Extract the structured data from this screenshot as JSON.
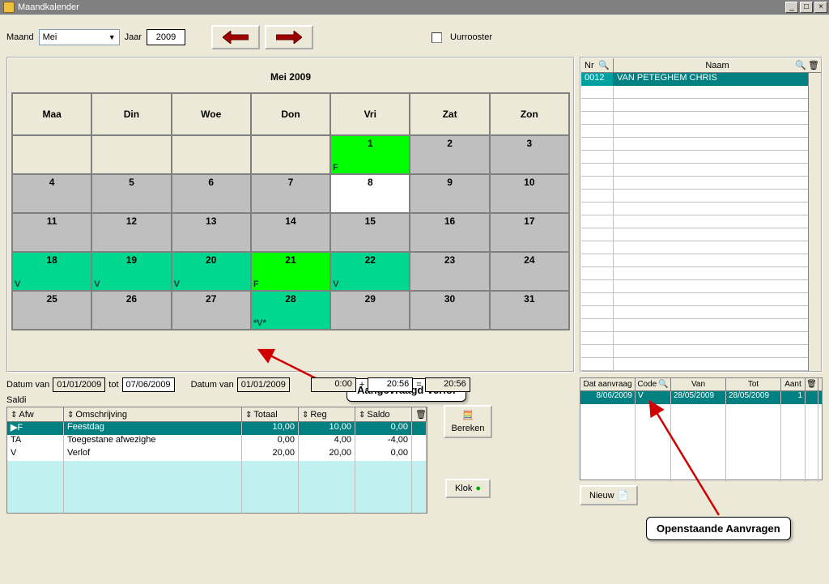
{
  "window": {
    "title": "Maandkalender"
  },
  "controls": {
    "month_label": "Maand",
    "month_value": "Mei",
    "year_label": "Jaar",
    "year_value": "2009",
    "uurrooster_label": "Uurrooster"
  },
  "calendar": {
    "title": "Mei 2009",
    "day_headers": [
      "Maa",
      "Din",
      "Woe",
      "Don",
      "Vri",
      "Zat",
      "Zon"
    ],
    "cells": [
      {
        "n": "",
        "bg": "empty"
      },
      {
        "n": "",
        "bg": "empty"
      },
      {
        "n": "",
        "bg": "empty"
      },
      {
        "n": "",
        "bg": "empty"
      },
      {
        "n": "1",
        "bg": "green",
        "code": "F"
      },
      {
        "n": "2",
        "bg": "gray"
      },
      {
        "n": "3",
        "bg": "gray"
      },
      {
        "n": "4",
        "bg": "gray"
      },
      {
        "n": "5",
        "bg": "gray"
      },
      {
        "n": "6",
        "bg": "gray"
      },
      {
        "n": "7",
        "bg": "gray"
      },
      {
        "n": "8",
        "bg": "white"
      },
      {
        "n": "9",
        "bg": "gray"
      },
      {
        "n": "10",
        "bg": "gray"
      },
      {
        "n": "11",
        "bg": "gray"
      },
      {
        "n": "12",
        "bg": "gray"
      },
      {
        "n": "13",
        "bg": "gray"
      },
      {
        "n": "14",
        "bg": "gray"
      },
      {
        "n": "15",
        "bg": "gray"
      },
      {
        "n": "16",
        "bg": "gray"
      },
      {
        "n": "17",
        "bg": "gray"
      },
      {
        "n": "18",
        "bg": "teal",
        "code": "V"
      },
      {
        "n": "19",
        "bg": "teal",
        "code": "V"
      },
      {
        "n": "20",
        "bg": "teal",
        "code": "V"
      },
      {
        "n": "21",
        "bg": "green",
        "code": "F"
      },
      {
        "n": "22",
        "bg": "teal",
        "code": "V"
      },
      {
        "n": "23",
        "bg": "gray"
      },
      {
        "n": "24",
        "bg": "gray"
      },
      {
        "n": "25",
        "bg": "gray"
      },
      {
        "n": "26",
        "bg": "gray"
      },
      {
        "n": "27",
        "bg": "gray"
      },
      {
        "n": "28",
        "bg": "teal",
        "code": "*V*"
      },
      {
        "n": "29",
        "bg": "gray"
      },
      {
        "n": "30",
        "bg": "gray"
      },
      {
        "n": "31",
        "bg": "gray"
      }
    ]
  },
  "callouts": {
    "aangevraagd": "Aangevraagd Verlof",
    "openstaande": "Openstaande Aanvragen"
  },
  "names": {
    "hdr_nr": "Nr",
    "hdr_naam": "Naam",
    "rows": [
      {
        "nr": "0012",
        "naam": "VAN PETEGHEM CHRIS"
      }
    ]
  },
  "dateline": {
    "datum_van_label": "Datum van",
    "van1": "01/01/2009",
    "tot_label": "tot",
    "tot1": "07/06/2009",
    "van2": "01/01/2009",
    "t1": "0:00",
    "plus": "+",
    "t2": "20:56",
    "eq": "=",
    "t3": "20:56"
  },
  "saldi": {
    "title": "Saldi",
    "hdr_afw": "Afw",
    "hdr_oms": "Omschrijving",
    "hdr_tot": "Totaal",
    "hdr_reg": "Reg",
    "hdr_sal": "Saldo",
    "rows": [
      {
        "afw": "F",
        "oms": "Feestdag",
        "tot": "10,00",
        "reg": "10,00",
        "sal": "0,00",
        "sel": true
      },
      {
        "afw": "TA",
        "oms": "Toegestane afwezighe",
        "tot": "0,00",
        "reg": "4,00",
        "sal": "-4,00",
        "sel": false
      },
      {
        "afw": "V",
        "oms": "Verlof",
        "tot": "20,00",
        "reg": "20,00",
        "sal": "0,00",
        "sel": false
      }
    ]
  },
  "buttons": {
    "bereken": "Bereken",
    "klok": "Klok",
    "nieuw": "Nieuw"
  },
  "requests": {
    "hdr_dat": "Dat aanvraag",
    "hdr_code": "Code",
    "hdr_van": "Van",
    "hdr_tot": "Tot",
    "hdr_aant": "Aant",
    "rows": [
      {
        "dat": "8/06/2009",
        "code": "V",
        "van": "28/05/2009",
        "tot": "28/05/2009",
        "aant": "1"
      }
    ]
  }
}
